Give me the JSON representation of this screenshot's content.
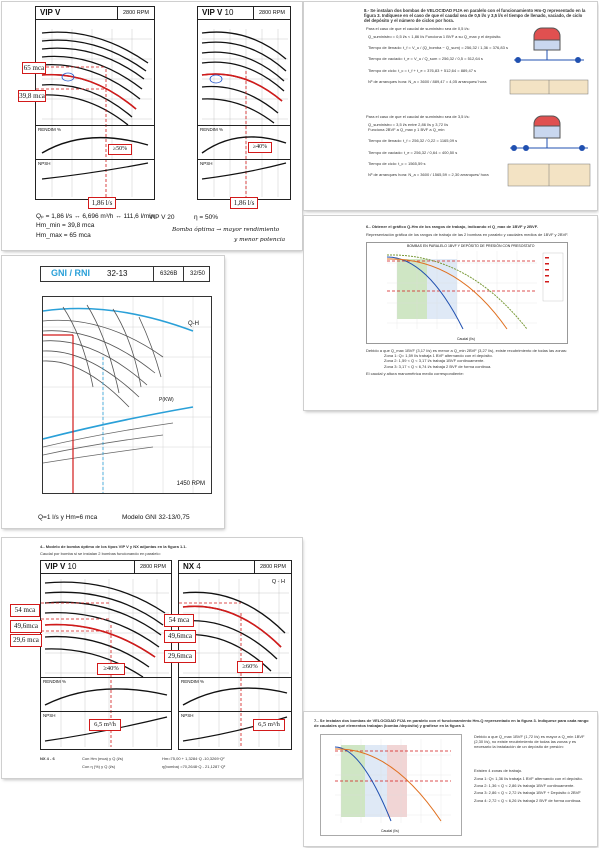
{
  "page1": {
    "chart_left": {
      "title": "VIP V",
      "rpm": "2800 RPM",
      "label_h1": "65 mca",
      "label_h2": "39,8 mca",
      "label_q": "1,86 l/s",
      "label_eff": "≥50%",
      "rend_label": "RENDIM %",
      "npsh_label": "NPSH"
    },
    "chart_right": {
      "title": "VIP V",
      "subtitle": "10",
      "rpm": "2800 RPM",
      "label_q": "1,86 l/s",
      "label_eff": "≥40%",
      "rend_label": "RENDIM %",
      "npsh_label": "NPSH"
    },
    "calc_line1": "Qₚ = 1,86 l/s ↔ 6,696 m³/h ↔ 111,6 l/min",
    "calc_line2": "Hm_min = 39,8 mca",
    "calc_line3": "Hm_max = 65 mca",
    "model": "VIP V  20",
    "eff": "η = 50%",
    "handwritten1": "Bomba óptima → mayor rendimiento",
    "handwritten2": "y menor potencia"
  },
  "page2": {
    "heading": "8.- Se instalan dos bombas de VELOCIDAD FIJA en paralelo con el funcionamiento Hm-Q representado en la figura 3. Indíquese en el caso de que el caudal sea de 0,5 l/s y 3,5 l/s el tiempo de llenado, vaciado, de ciclo del depósito y el número de ciclos por hora.",
    "block1_title": "Para el caso de que el caudal de suministro sea de 0,5 l/s:",
    "block2_title": "Para el caso de que el caudal de suministro sea de 3,5 l/s:",
    "lines_a": [
      "Q_suministro = 0,5 l/s < 1,86 l/s  Funciona 1 BVF a su Q_max y el depósito.",
      "Tiempo de llenado:   t_f = V_u / (Q_bomba − Q_sum) = 256,32 / 1,36 = 376,83 s",
      "Tiempo de vaciado:   t_e = V_u / Q_sum = 256,32 / 0,5 = 512,64 s",
      "Tiempo de ciclo:   t_c = t_f + t_e = 376,83 + 512,64 = 889,47 s",
      "Nº de arranques hora:   N_a = 3600 / 889,47 = 4,05 arranques/ hora"
    ],
    "lines_b": [
      "Q_suministro = 3,5 l/s  entre 2,86 l/s y 3,72 l/s",
      "Funciona 2BVF a Q_max y 1 BVF a Q_min",
      "Tiempo de llenado:   t_f = 256,32 / 0,22 = 1165,09 s",
      "Tiempo de vaciado:   t_e = 256,32 / 0,64 = 400,50 s",
      "Tiempo de ciclo:   t_c = 1565,59 s",
      "Nº de arranques hora:   N_a = 3600 / 1565,59 = 2,30 arranques/ hora"
    ]
  },
  "page3": {
    "title": "GNI / RNI",
    "model_no": "32-13",
    "code": "6326B",
    "page": "32/50",
    "qh": "Q-H",
    "p_label": "P(KW)",
    "rpm": "1450 RPM",
    "footer_q": "Q=1 l/s   y   Hm=6 mca",
    "footer_model": "Modelo GNI 32-13/0,75"
  },
  "page4": {
    "heading": "6.- Obtener el gráfico Q-Hm de los rangos de trabajo, indicando el Q_max de 1BVF y 2BVF.",
    "subheading": "Representación gráfica de los rangos de trabajo de las 2 bombas en paralelo y caudales medios de 1BVF y 2BVF.",
    "chart_title": "BOMBAS EN PARALELO 1BVF Y DEPÓSITO DE PRESIÓN CON PRESOSTATO",
    "xlabel": "Caudal   (l/s)",
    "zones": [
      "Debido a que Q_max 1BVF (3,17 l/s) es menor a Q_min 2BVF (3,27 l/s), existe recubrimiento de todas las zonas:",
      "Zona 1:   Q= 1,59 l/s trabaja 1 BVF alternando con el depósito.",
      "Zona 2:   1,59 < Q < 3,17 l/s trabaja 1BVF continuamente.",
      "Zona 3:   3,17 < Q < 6,74 l/s trabaja 2 BVF de forma continua."
    ],
    "formula": "El caudal y altura manométrica medio correspondiente:"
  },
  "page5": {
    "heading": "4.- Modelo de bomba óptimo de los tipos VIP V y NX adjuntas en la figura 1.1.",
    "subheading": "Caudal por bomba si se instalan 2 bombas funcionando en paralelo:",
    "chart_left": {
      "title": "VIP V",
      "subtitle": "10",
      "rpm": "2800 RPM",
      "h1": "54 mca",
      "h2": "49,6mca",
      "h3": "29,6 mca",
      "eff": "≥40%",
      "q": "6,5 m³/h",
      "rend_label": "RENDIM %",
      "npsh_label": "NPSH"
    },
    "chart_right": {
      "title": "NX",
      "subtitle": "4",
      "rpm": "2800 RPM",
      "qh": "Q - H",
      "h1": "54 mca",
      "h2": "49,6mca",
      "h3": "29,6mca",
      "eff": "≥60%",
      "q": "6,5 m³/h",
      "rend_label": "RENDIM %",
      "npsh_label": "NPSH"
    },
    "foot_model": "NX 4 - 6",
    "foot_l1": "Con Hm (mca) y Q (l/s)",
    "foot_l2": "Con η (%) y Q (l/s)",
    "foot_r1": "Hm=75,00 + 1,3284·Q -10,3269·Q²",
    "foot_r2": "η(bomba) =70,2648·Q - 21,1287·Q²"
  },
  "page6": {
    "heading": "7.- Se instalan dos bombas de VELOCIDAD FIJA en paralelo con el funcionamiento Hm-Q representado en la figura 3. Indíquese para cada rango de caudales qué elementos trabajan (bomba /depósito) y grafíese en la figura 3.",
    "para": "Debido a que Q_max 1BVF (1,72 l/s) es mayor a Q_min 1BVF (2,30 l/s), no existe recubrimiento de todas las zonas y es necesario la instalación de un depósito de presión:",
    "zones_title": "Existen 4 zonas de trabajo.",
    "zones": [
      "Zona 1:   Q< 1,36 l/s trabaja 1 BVF alternando con el depósito.",
      "Zona 2:   1,36 < Q < 2,86 l/s trabaja 1BVF continuamente.",
      "Zona 3:   2,86 < Q < 2,72 l/s  trabaja 1BVF + Depósito ó 2BVF",
      "Zona 4:   2,72 < Q < 6,26 l/s  trabaja 2 BVF de forma continua."
    ],
    "chart_xlabel": "Caudal   (l/s)"
  }
}
